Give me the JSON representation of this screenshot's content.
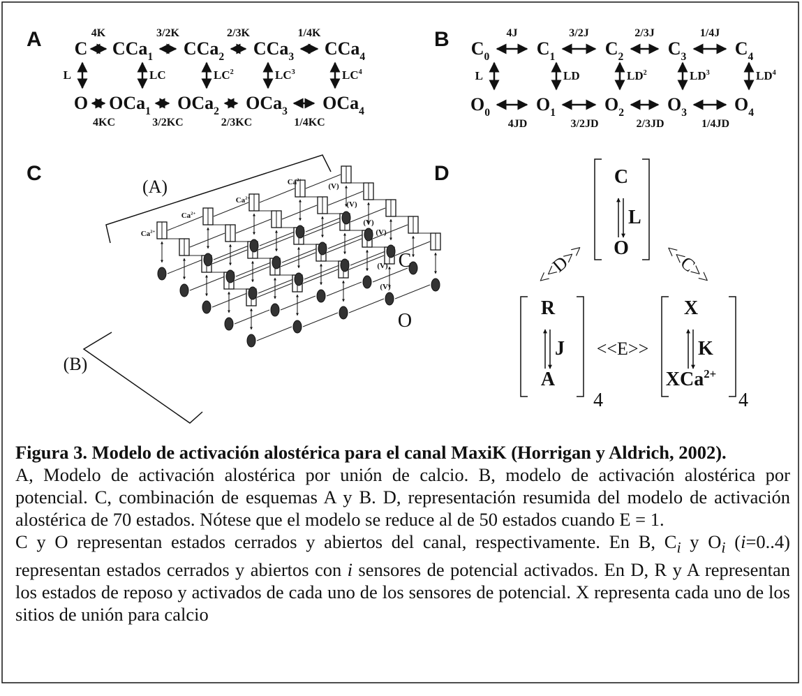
{
  "panel_a": {
    "label": "A",
    "closed_states": [
      {
        "text": "C"
      },
      {
        "text": "CCa",
        "sub": "1"
      },
      {
        "text": "CCa",
        "sub": "2"
      },
      {
        "text": "CCa",
        "sub": "3"
      },
      {
        "text": "CCa",
        "sub": "4"
      }
    ],
    "open_states": [
      {
        "text": "O"
      },
      {
        "text": "OCa",
        "sub": "1"
      },
      {
        "text": "OCa",
        "sub": "2"
      },
      {
        "text": "OCa",
        "sub": "3"
      },
      {
        "text": "OCa",
        "sub": "4"
      }
    ],
    "closed_rates": [
      "4K",
      "3/2K",
      "2/3K",
      "1/4K"
    ],
    "open_rates": [
      "4KC",
      "3/2KC",
      "2/3KC",
      "1/4KC"
    ],
    "vertical_rates": [
      {
        "text": "L"
      },
      {
        "text": "LC"
      },
      {
        "text": "LC",
        "sup": "2"
      },
      {
        "text": "LC",
        "sup": "3"
      },
      {
        "text": "LC",
        "sup": "4"
      }
    ]
  },
  "panel_b": {
    "label": "B",
    "closed_states": [
      {
        "text": "C",
        "sub": "0"
      },
      {
        "text": "C",
        "sub": "1"
      },
      {
        "text": "C",
        "sub": "2"
      },
      {
        "text": "C",
        "sub": "3"
      },
      {
        "text": "C",
        "sub": "4"
      }
    ],
    "open_states": [
      {
        "text": "O",
        "sub": "0"
      },
      {
        "text": "O",
        "sub": "1"
      },
      {
        "text": "O",
        "sub": "2"
      },
      {
        "text": "O",
        "sub": "3"
      },
      {
        "text": "O",
        "sub": "4"
      }
    ],
    "closed_rates": [
      "4J",
      "3/2J",
      "2/3J",
      "1/4J"
    ],
    "open_rates": [
      "4JD",
      "3/2JD",
      "2/3JD",
      "1/4JD"
    ],
    "vertical_rates": [
      {
        "text": "L"
      },
      {
        "text": "LD"
      },
      {
        "text": "LD",
        "sup": "2"
      },
      {
        "text": "LD",
        "sup": "3"
      },
      {
        "text": "LD",
        "sup": "4"
      }
    ]
  },
  "panel_c": {
    "label": "C",
    "bracket_a": "(A)",
    "bracket_b": "(B)",
    "closed_label": "C",
    "open_label": "O",
    "calcium_labels": [
      {
        "text": "Ca",
        "sup": "2+"
      },
      {
        "text": "Ca",
        "sup": "2+"
      },
      {
        "text": "Ca",
        "sup": "2+"
      },
      {
        "text": "Ca",
        "sup": "2+"
      }
    ],
    "voltage_labels": [
      "(V)",
      "(V)",
      "(V)",
      "(V)",
      "(V)",
      "(V)"
    ]
  },
  "panel_d": {
    "label": "D",
    "gate": {
      "top": "C",
      "rate": "L",
      "bottom": "O"
    },
    "voltage_sensor": {
      "top": "R",
      "rate": "J",
      "bottom": "A",
      "count": "4"
    },
    "calcium_site": {
      "top": "X",
      "rate": "K",
      "bottom": {
        "text": "XCa",
        "sup": "2+"
      },
      "count": "4"
    },
    "coupling_d": "<<D>>",
    "coupling_c": "<<C>>",
    "coupling_e": "<<E>>"
  },
  "caption": {
    "title": "Figura 3. Modelo de activación alostérica para el canal MaxiK (Horrigan y Al­drich, 2002).",
    "paragraph_1": "A, Modelo de activación alostérica por unión de calcio. B, modelo de activación alosté­rica por potencial. C, combinación de esquemas A y B. D, representación resumida del modelo de activación alostérica de 70 estados. Nótese que el modelo se reduce al de 50 estados cuando E = 1.",
    "paragraph_2_parts": [
      "C y O representan estados cerrados y abiertos del canal, respectivamente. En B, C",
      "i",
      " y O",
      "i",
      " (",
      "i",
      "=0..4) representan estados cerrados y abiertos con ",
      "i",
      " sensores de potencial activados. En D, R y A representan los estados de reposo y activados de cada uno de los sensores de potencial. X representa cada uno de los sitios de unión para calcio"
    ]
  }
}
